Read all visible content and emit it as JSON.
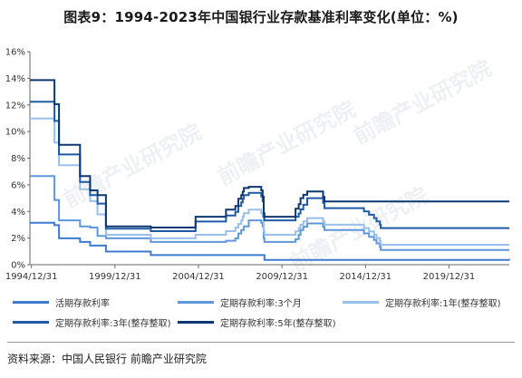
{
  "title": "图表9：1994-2023年中国银行业存款基准利率变化(单位：%)",
  "source": "资料来源：中国人民银行 前瞻产业研究院",
  "watermark": "前瞻产业研究院",
  "chart_data": {
    "type": "line",
    "step": true,
    "xlim": [
      1994.9,
      2023.6
    ],
    "ylim": [
      0,
      16
    ],
    "y_ticks": [
      0,
      2,
      4,
      6,
      8,
      10,
      12,
      14,
      16
    ],
    "y_tick_format": "percent",
    "x_ticks": [
      {
        "value": 1994.99,
        "label": "1994/12/31"
      },
      {
        "value": 1999.99,
        "label": "1999/12/31"
      },
      {
        "value": 2004.99,
        "label": "2004/12/31"
      },
      {
        "value": 2009.99,
        "label": "2009/12/31"
      },
      {
        "value": 2014.99,
        "label": "2014/12/31"
      },
      {
        "value": 2019.99,
        "label": "2019/12/31"
      }
    ],
    "grid": false,
    "legend": "bottom",
    "series": [
      {
        "name": "活期存款利率",
        "color": "#3d7bd1",
        "points": [
          [
            1994.9,
            3.15
          ],
          [
            1996.37,
            2.97
          ],
          [
            1996.64,
            1.98
          ],
          [
            1997.9,
            1.71
          ],
          [
            1998.5,
            1.44
          ],
          [
            1998.95,
            1.44
          ],
          [
            1999.45,
            0.99
          ],
          [
            2002.14,
            0.72
          ],
          [
            2008.94,
            0.36
          ],
          [
            2023.6,
            0.35
          ]
        ]
      },
      {
        "name": "定期存款利率:3个月",
        "color": "#5f97dc",
        "points": [
          [
            1994.9,
            6.66
          ],
          [
            1996.37,
            4.86
          ],
          [
            1996.64,
            3.33
          ],
          [
            1997.9,
            2.88
          ],
          [
            1998.5,
            2.79
          ],
          [
            1998.95,
            2.16
          ],
          [
            1999.45,
            1.98
          ],
          [
            2002.14,
            1.71
          ],
          [
            2006.64,
            1.8
          ],
          [
            2007.2,
            1.98
          ],
          [
            2007.38,
            2.34
          ],
          [
            2007.55,
            2.61
          ],
          [
            2007.64,
            2.61
          ],
          [
            2007.71,
            2.88
          ],
          [
            2008.0,
            3.33
          ],
          [
            2008.75,
            3.15
          ],
          [
            2008.83,
            2.88
          ],
          [
            2008.9,
            1.98
          ],
          [
            2008.94,
            1.71
          ],
          [
            2010.8,
            1.91
          ],
          [
            2010.99,
            2.25
          ],
          [
            2011.1,
            2.6
          ],
          [
            2011.27,
            2.85
          ],
          [
            2011.5,
            3.1
          ],
          [
            2012.45,
            2.85
          ],
          [
            2012.53,
            2.6
          ],
          [
            2014.9,
            2.35
          ],
          [
            2015.2,
            2.1
          ],
          [
            2015.5,
            1.85
          ],
          [
            2015.65,
            1.6
          ],
          [
            2015.85,
            1.35
          ],
          [
            2015.9,
            1.1
          ],
          [
            2023.6,
            1.1
          ]
        ]
      },
      {
        "name": "定期存款利率:1年(整存整取)",
        "color": "#98c0ea",
        "points": [
          [
            1994.9,
            10.98
          ],
          [
            1996.37,
            9.18
          ],
          [
            1996.64,
            7.47
          ],
          [
            1997.9,
            5.67
          ],
          [
            1998.5,
            4.77
          ],
          [
            1998.95,
            3.78
          ],
          [
            1999.45,
            2.25
          ],
          [
            2002.14,
            1.98
          ],
          [
            2004.82,
            2.25
          ],
          [
            2006.64,
            2.52
          ],
          [
            2007.2,
            2.79
          ],
          [
            2007.38,
            3.06
          ],
          [
            2007.55,
            3.33
          ],
          [
            2007.64,
            3.6
          ],
          [
            2007.71,
            3.87
          ],
          [
            2008.0,
            4.14
          ],
          [
            2008.75,
            3.87
          ],
          [
            2008.83,
            3.6
          ],
          [
            2008.9,
            2.52
          ],
          [
            2008.94,
            2.25
          ],
          [
            2010.8,
            2.5
          ],
          [
            2010.99,
            2.75
          ],
          [
            2011.1,
            3.0
          ],
          [
            2011.27,
            3.25
          ],
          [
            2011.5,
            3.5
          ],
          [
            2012.45,
            3.25
          ],
          [
            2012.53,
            3.0
          ],
          [
            2014.9,
            2.75
          ],
          [
            2015.2,
            2.5
          ],
          [
            2015.5,
            2.25
          ],
          [
            2015.65,
            2.0
          ],
          [
            2015.85,
            1.75
          ],
          [
            2015.9,
            1.5
          ],
          [
            2023.6,
            1.5
          ]
        ]
      },
      {
        "name": "定期存款利率:3年(整存整取)",
        "color": "#1f5aa6",
        "points": [
          [
            1994.9,
            12.24
          ],
          [
            1996.37,
            10.8
          ],
          [
            1996.64,
            8.28
          ],
          [
            1997.9,
            6.21
          ],
          [
            1998.5,
            5.22
          ],
          [
            1998.95,
            4.59
          ],
          [
            1999.45,
            2.7
          ],
          [
            2002.14,
            2.52
          ],
          [
            2004.82,
            3.24
          ],
          [
            2006.64,
            3.69
          ],
          [
            2007.2,
            3.96
          ],
          [
            2007.38,
            4.41
          ],
          [
            2007.55,
            4.68
          ],
          [
            2007.64,
            4.95
          ],
          [
            2007.71,
            5.22
          ],
          [
            2008.0,
            5.4
          ],
          [
            2008.75,
            5.13
          ],
          [
            2008.83,
            4.77
          ],
          [
            2008.9,
            3.6
          ],
          [
            2008.94,
            3.33
          ],
          [
            2010.8,
            3.6
          ],
          [
            2010.99,
            3.85
          ],
          [
            2011.1,
            4.15
          ],
          [
            2011.27,
            4.5
          ],
          [
            2011.5,
            5.0
          ],
          [
            2012.45,
            4.65
          ],
          [
            2012.53,
            4.25
          ],
          [
            2014.9,
            4.0
          ],
          [
            2015.2,
            3.75
          ],
          [
            2015.5,
            3.5
          ],
          [
            2015.65,
            3.25
          ],
          [
            2015.85,
            3.0
          ],
          [
            2015.9,
            2.75
          ],
          [
            2023.6,
            2.75
          ]
        ]
      },
      {
        "name": "定期存款利率:5年(整存整取)",
        "color": "#0d3770",
        "points": [
          [
            1994.9,
            13.86
          ],
          [
            1996.37,
            12.06
          ],
          [
            1996.64,
            9.0
          ],
          [
            1997.9,
            6.66
          ],
          [
            1998.5,
            5.58
          ],
          [
            1998.95,
            5.22
          ],
          [
            1999.45,
            2.88
          ],
          [
            2002.14,
            2.79
          ],
          [
            2004.82,
            3.6
          ],
          [
            2006.64,
            4.14
          ],
          [
            2007.2,
            4.41
          ],
          [
            2007.38,
            4.95
          ],
          [
            2007.55,
            5.22
          ],
          [
            2007.64,
            5.49
          ],
          [
            2007.71,
            5.76
          ],
          [
            2008.0,
            5.85
          ],
          [
            2008.75,
            5.58
          ],
          [
            2008.83,
            5.13
          ],
          [
            2008.9,
            3.87
          ],
          [
            2008.94,
            3.6
          ],
          [
            2010.8,
            4.2
          ],
          [
            2010.99,
            4.55
          ],
          [
            2011.1,
            5.0
          ],
          [
            2011.27,
            5.25
          ],
          [
            2011.5,
            5.5
          ],
          [
            2012.45,
            5.1
          ],
          [
            2012.53,
            4.75
          ],
          [
            2023.6,
            4.75
          ]
        ]
      }
    ]
  }
}
